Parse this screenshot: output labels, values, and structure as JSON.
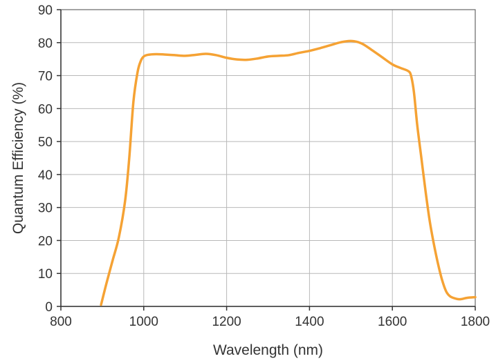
{
  "chart_data": {
    "type": "line",
    "title": "",
    "xlabel": "Wavelength (nm)",
    "ylabel": "Quantum Efficiency (%)",
    "xlim": [
      800,
      1800
    ],
    "ylim": [
      0,
      90
    ],
    "xticks": [
      800,
      1000,
      1200,
      1400,
      1600,
      1800
    ],
    "yticks": [
      0,
      10,
      20,
      30,
      40,
      50,
      60,
      70,
      80,
      90
    ],
    "grid": true,
    "legend": "none",
    "series": [
      {
        "color": "#f5a234",
        "points": [
          [
            897,
            0.5
          ],
          [
            910,
            7
          ],
          [
            925,
            14
          ],
          [
            940,
            21
          ],
          [
            955,
            32
          ],
          [
            965,
            45
          ],
          [
            975,
            62
          ],
          [
            985,
            71
          ],
          [
            993,
            74.5
          ],
          [
            1000,
            75.8
          ],
          [
            1010,
            76.3
          ],
          [
            1030,
            76.5
          ],
          [
            1050,
            76.4
          ],
          [
            1075,
            76.2
          ],
          [
            1100,
            76.0
          ],
          [
            1125,
            76.3
          ],
          [
            1150,
            76.6
          ],
          [
            1175,
            76.2
          ],
          [
            1200,
            75.4
          ],
          [
            1225,
            74.9
          ],
          [
            1250,
            74.8
          ],
          [
            1275,
            75.2
          ],
          [
            1300,
            75.8
          ],
          [
            1325,
            76.0
          ],
          [
            1350,
            76.2
          ],
          [
            1375,
            76.9
          ],
          [
            1400,
            77.5
          ],
          [
            1425,
            78.3
          ],
          [
            1450,
            79.2
          ],
          [
            1475,
            80.1
          ],
          [
            1500,
            80.5
          ],
          [
            1525,
            79.8
          ],
          [
            1550,
            77.8
          ],
          [
            1575,
            75.6
          ],
          [
            1600,
            73.4
          ],
          [
            1620,
            72.3
          ],
          [
            1638,
            71.4
          ],
          [
            1645,
            70.0
          ],
          [
            1652,
            65
          ],
          [
            1660,
            55
          ],
          [
            1670,
            45
          ],
          [
            1680,
            35
          ],
          [
            1690,
            26
          ],
          [
            1700,
            19
          ],
          [
            1710,
            13
          ],
          [
            1720,
            8
          ],
          [
            1730,
            4.5
          ],
          [
            1740,
            3
          ],
          [
            1755,
            2.3
          ],
          [
            1765,
            2.2
          ],
          [
            1780,
            2.6
          ],
          [
            1800,
            2.8
          ]
        ]
      }
    ]
  }
}
